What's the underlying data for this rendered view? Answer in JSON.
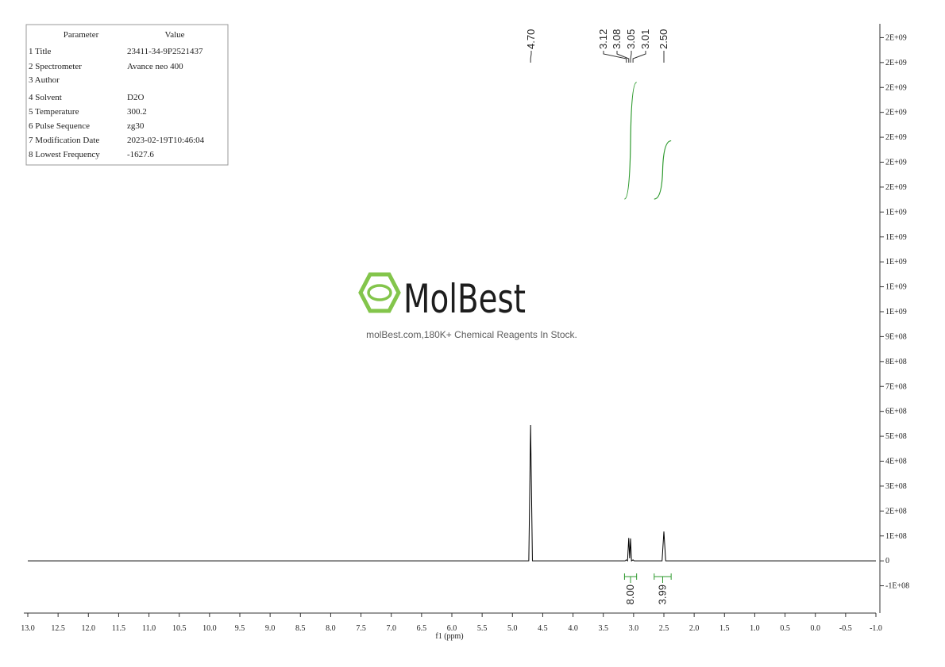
{
  "chart_data": {
    "type": "line",
    "x_label": "f1 (ppm)",
    "x": [
      13.0,
      4.73,
      4.7,
      4.67,
      3.14,
      3.12,
      3.1,
      3.08,
      3.065,
      3.05,
      3.035,
      3.01,
      2.99,
      2.53,
      2.5,
      2.47,
      -1.0
    ],
    "series": [
      {
        "color": "#000000",
        "values": [
          0,
          0,
          545000000,
          0,
          0,
          4000000,
          0,
          92000000,
          10000000,
          90000000,
          0,
          4000000,
          0,
          0,
          118000000,
          0,
          0
        ]
      }
    ],
    "xlim": [
      13.0,
      -1.0
    ],
    "xticks": [
      {
        "value": 13,
        "label": "13.0"
      },
      12.5,
      {
        "value": 12,
        "label": "12.0"
      },
      11.5,
      {
        "value": 11,
        "label": "11.0"
      },
      10.5,
      {
        "value": 10,
        "label": "10.0"
      },
      9.5,
      {
        "value": 9,
        "label": "9.0"
      },
      8.5,
      {
        "value": 8,
        "label": "8.0"
      },
      7.5,
      {
        "value": 7,
        "label": "7.0"
      },
      6.5,
      {
        "value": 6,
        "label": "6.0"
      },
      5.5,
      {
        "value": 5,
        "label": "5.0"
      },
      4.5,
      {
        "value": 4,
        "label": "4.0"
      },
      3.5,
      {
        "value": 3,
        "label": "3.0"
      },
      2.5,
      {
        "value": 2,
        "label": "2.0"
      },
      1.5,
      {
        "value": 1,
        "label": "1.0"
      },
      0.5,
      {
        "value": 0,
        "label": "0.0"
      },
      -0.5,
      {
        "value": -1,
        "label": "-1.0"
      }
    ],
    "ylim": [
      -200000000,
      2200000000
    ],
    "yticks": [
      {
        "value": -100000000,
        "label": "-1E+08"
      },
      0,
      {
        "value": 100000000,
        "label": "1E+08"
      },
      {
        "value": 200000000,
        "label": "2E+08"
      },
      {
        "value": 300000000,
        "label": "3E+08"
      },
      {
        "value": 400000000,
        "label": "4E+08"
      },
      {
        "value": 500000000,
        "label": "5E+08"
      },
      {
        "value": 600000000,
        "label": "6E+08"
      },
      {
        "value": 700000000,
        "label": "7E+08"
      },
      {
        "value": 800000000,
        "label": "8E+08"
      },
      {
        "value": 900000000,
        "label": "9E+08"
      },
      {
        "value": 1000000000,
        "label": "1E+09"
      },
      {
        "value": 1100000000,
        "label": "1E+09"
      },
      {
        "value": 1200000000,
        "label": "1E+09"
      },
      {
        "value": 1300000000,
        "label": "1E+09"
      },
      {
        "value": 1400000000,
        "label": "1E+09"
      },
      {
        "value": 1500000000,
        "label": "2E+09"
      },
      {
        "value": 1600000000,
        "label": "2E+09"
      },
      {
        "value": 1700000000,
        "label": "2E+09"
      },
      {
        "value": 1800000000,
        "label": "2E+09"
      },
      {
        "value": 1900000000,
        "label": "2E+09"
      },
      {
        "value": 2000000000,
        "label": "2E+09"
      },
      {
        "value": 2100000000,
        "label": "2E+09"
      }
    ],
    "peaks": {
      "values": [
        4.7,
        3.12,
        3.08,
        3.05,
        3.01,
        2.5
      ],
      "value_labels": [
        "4.70",
        "3.12",
        "3.08",
        "3.05",
        "3.01",
        "2.50"
      ]
    },
    "integrals": {
      "ranges": [
        [
          3.15,
          2.95
        ],
        [
          2.66,
          2.38
        ]
      ],
      "values": [
        8,
        3.99
      ],
      "value_labels": [
        "8.00",
        "3.99"
      ],
      "color": "#2e9a2e"
    }
  },
  "parameters": {
    "header": [
      "Parameter",
      "Value"
    ],
    "rows": [
      [
        "1 Title",
        "23411-34-9P2521437"
      ],
      [
        "2 Spectrometer",
        "Avance neo 400"
      ],
      [
        "3 Author"
      ],
      [
        "4 Solvent",
        "D2O"
      ],
      [
        "5 Temperature",
        "300.2"
      ],
      [
        "6 Pulse Sequence",
        "zg30"
      ],
      [
        "7 Modification Date",
        "2023-02-19T10:46:04"
      ],
      [
        "8 Lowest Frequency",
        "-1627.6"
      ]
    ]
  },
  "watermark": {
    "brand": "MolBest",
    "tagline": "molBest.com,180K+ Chemical Reagents In Stock."
  }
}
